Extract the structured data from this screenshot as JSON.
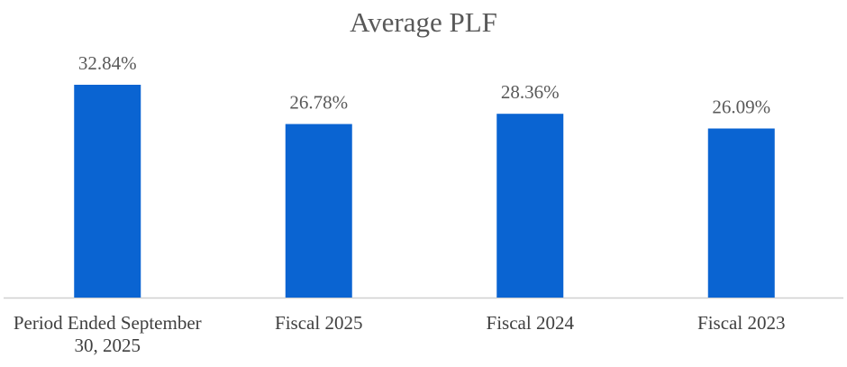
{
  "chart_data": {
    "type": "bar",
    "title": "Average PLF",
    "categories": [
      "Period Ended September 30, 2025",
      "Fiscal 2025",
      "Fiscal 2024",
      "Fiscal 2023"
    ],
    "values": [
      32.84,
      26.78,
      28.36,
      26.09
    ],
    "value_labels": [
      "32.84%",
      "26.78%",
      "28.36%",
      "26.09%"
    ],
    "color": "#0a64d2"
  }
}
